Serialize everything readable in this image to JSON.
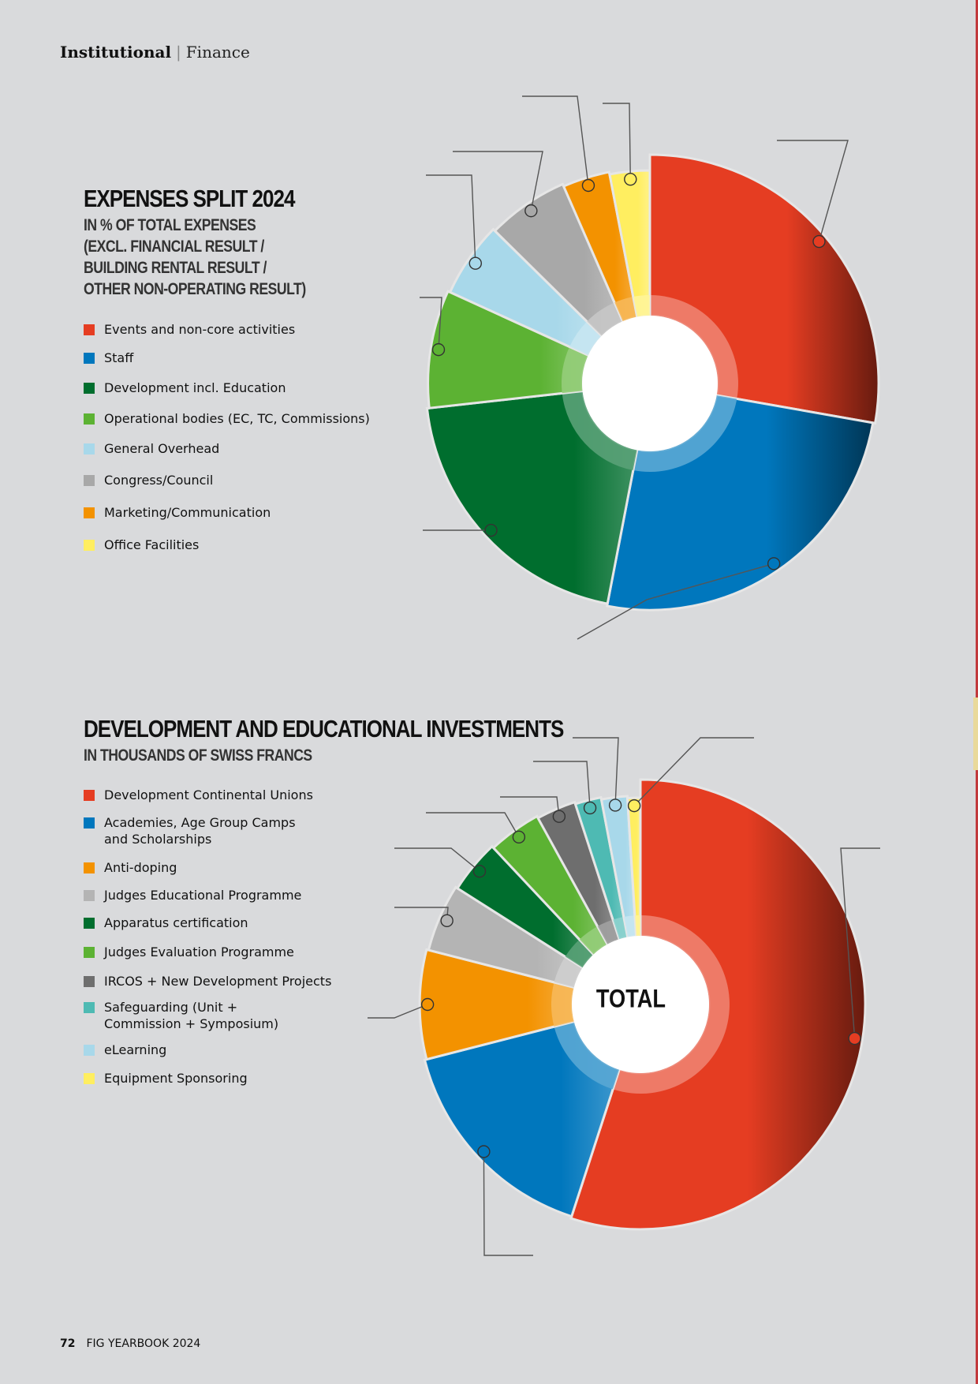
{
  "header": {
    "section": "Institutional",
    "separator": "|",
    "subsection": "Finance"
  },
  "footer": {
    "page_number": "72",
    "publication": "FIG YEARBOOK 2024"
  },
  "chart_data": [
    {
      "type": "pie",
      "title": "EXPENSES SPLIT 2024",
      "subtitle_lines": [
        "IN % OF TOTAL EXPENSES",
        "(EXCL. FINANCIAL RESULT /",
        "BUILDING RENTAL RESULT /",
        "OTHER NON-OPERATING RESULT)"
      ],
      "center_label": "",
      "legend_placement": "left",
      "series": [
        {
          "name": "Events and non-core activities",
          "value": 27.5,
          "color": "#e53d22"
        },
        {
          "name": "Staff",
          "value": 25.0,
          "color": "#0077bd"
        },
        {
          "name": "Development incl. Education",
          "value": 20.0,
          "color": "#006e2e"
        },
        {
          "name": "Operational bodies (EC, TC, Commissions)",
          "value": 8.5,
          "color": "#5cb233"
        },
        {
          "name": "General Overhead",
          "value": 5.5,
          "color": "#a8d8ea"
        },
        {
          "name": "Congress/Council",
          "value": 6.0,
          "color": "#a8a8a8"
        },
        {
          "name": "Marketing/Communication",
          "value": 3.5,
          "color": "#f39200"
        },
        {
          "name": "Office Facilities",
          "value": 3.0,
          "color": "#ffee60"
        }
      ]
    },
    {
      "type": "pie",
      "title": "DEVELOPMENT AND EDUCATIONAL INVESTMENTS",
      "subtitle_lines": [
        "IN THOUSANDS OF SWISS FRANCS"
      ],
      "center_label": "TOTAL",
      "legend_placement": "left",
      "series": [
        {
          "name": "Development Continental Unions",
          "value": 55.0,
          "color": "#e53d22"
        },
        {
          "name": "Academies, Age Group Camps\nand Scholarships",
          "value": 16.0,
          "color": "#0077bd"
        },
        {
          "name": "Anti-doping",
          "value": 8.0,
          "color": "#f39200"
        },
        {
          "name": "Judges Educational Programme",
          "value": 5.0,
          "color": "#b4b4b4"
        },
        {
          "name": "Apparatus certification",
          "value": 4.0,
          "color": "#006e2e"
        },
        {
          "name": "Judges Evaluation Programme",
          "value": 4.0,
          "color": "#5cb233"
        },
        {
          "name": "IRCOS + New Development Projects",
          "value": 3.0,
          "color": "#6e6e6e"
        },
        {
          "name": "Safeguarding (Unit +\nCommission + Symposium)",
          "value": 2.0,
          "color": "#4ebab3"
        },
        {
          "name": "eLearning",
          "value": 2.0,
          "color": "#a8d8ea"
        },
        {
          "name": "Equipment Sponsoring",
          "value": 1.0,
          "color": "#ffee60"
        }
      ]
    }
  ]
}
